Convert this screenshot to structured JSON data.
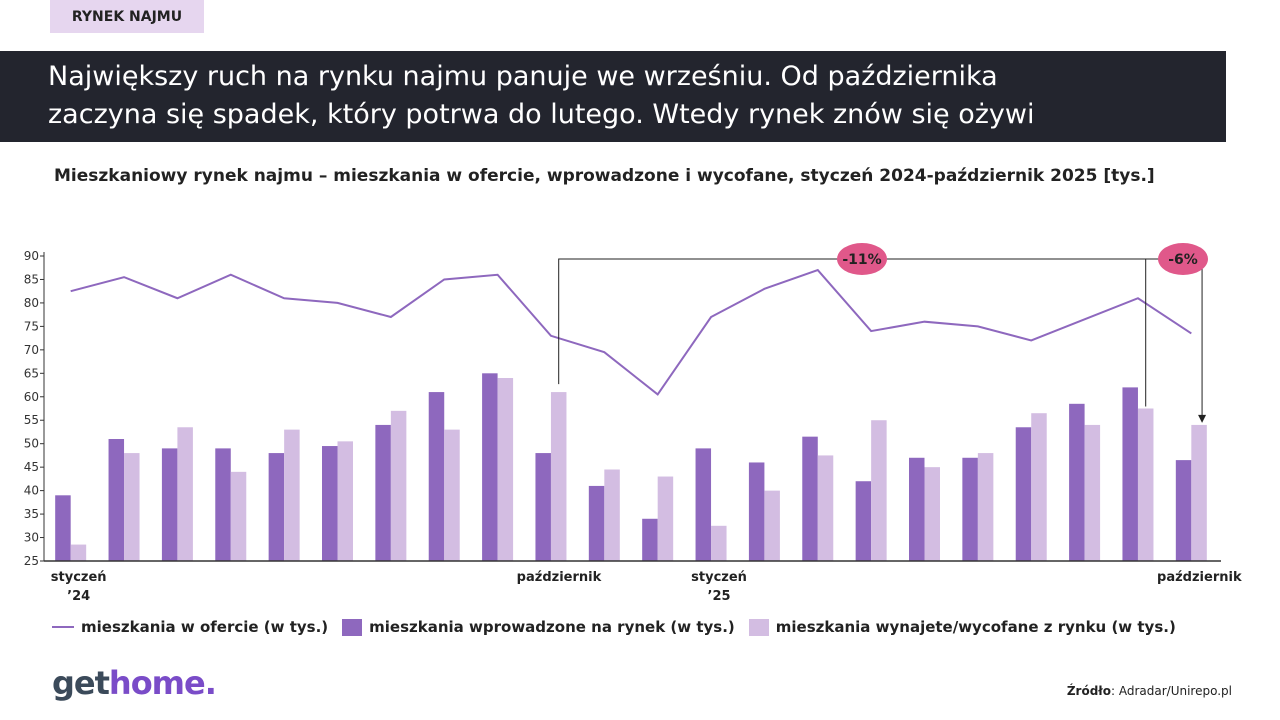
{
  "tag": "RYNEK NAJMU",
  "headline_1": "Największy ruch na rynku najmu panuje we wrześniu. Od października",
  "headline_2": "zaczyna się spadek, który potrwa do lutego. Wtedy rynek znów się ożywi",
  "logo": {
    "part1": "get",
    "part2": "home",
    "dot": "."
  },
  "source": {
    "label": "Źródło",
    "text": ": Adradar/Unirepo.pl"
  },
  "colors": {
    "line": "#8e68be",
    "dark": "#8e68be",
    "light": "#d3bde2",
    "badge": "#e0588a"
  },
  "chart_data": {
    "type": "bar",
    "title": "Mieszkaniowy rynek najmu – mieszkania w ofercie, wprowadzone i wycofane, styczeń 2024-październik 2025 [tys.]",
    "ylim": [
      25,
      90
    ],
    "yticks": [
      25,
      30,
      35,
      40,
      45,
      50,
      55,
      60,
      65,
      70,
      75,
      80,
      85,
      90
    ],
    "x_labels": [
      {
        "index": 0,
        "line1": "styczeń",
        "line2": "’24"
      },
      {
        "index": 9,
        "line1": "październik",
        "line2": ""
      },
      {
        "index": 12,
        "line1": "styczeń",
        "line2": "’25"
      },
      {
        "index": 21,
        "line1": "październik",
        "line2": ""
      }
    ],
    "series": [
      {
        "name": "mieszkania w ofercie (w tys.)",
        "kind": "line",
        "values": [
          82.5,
          85.5,
          81,
          86,
          81,
          80,
          77,
          85,
          86,
          73,
          69.5,
          60.5,
          77,
          83,
          87,
          74,
          76,
          75,
          72,
          76.5,
          81,
          73.5
        ]
      },
      {
        "name": "mieszkania wprowadzone na rynek (w tys.)",
        "kind": "bar",
        "values": [
          39,
          51,
          49,
          49,
          48,
          49.5,
          54,
          61,
          65,
          48,
          41,
          34,
          49,
          46,
          51.5,
          42,
          47,
          47,
          53.5,
          58.5,
          62,
          46.5
        ]
      },
      {
        "name": "mieszkania wynajete/wycofane z rynku (w tys.)",
        "kind": "bar",
        "values": [
          28.5,
          48,
          53.5,
          44,
          53,
          50.5,
          57,
          53,
          64,
          61,
          44.5,
          43,
          32.5,
          40,
          47.5,
          55,
          45,
          48,
          56.5,
          54,
          57.5,
          54
        ]
      }
    ],
    "annotations": [
      {
        "text": "-11%",
        "from_index": 9,
        "to_index": 21
      },
      {
        "text": "-6%",
        "from_index": 20,
        "to_index": 21
      }
    ]
  }
}
